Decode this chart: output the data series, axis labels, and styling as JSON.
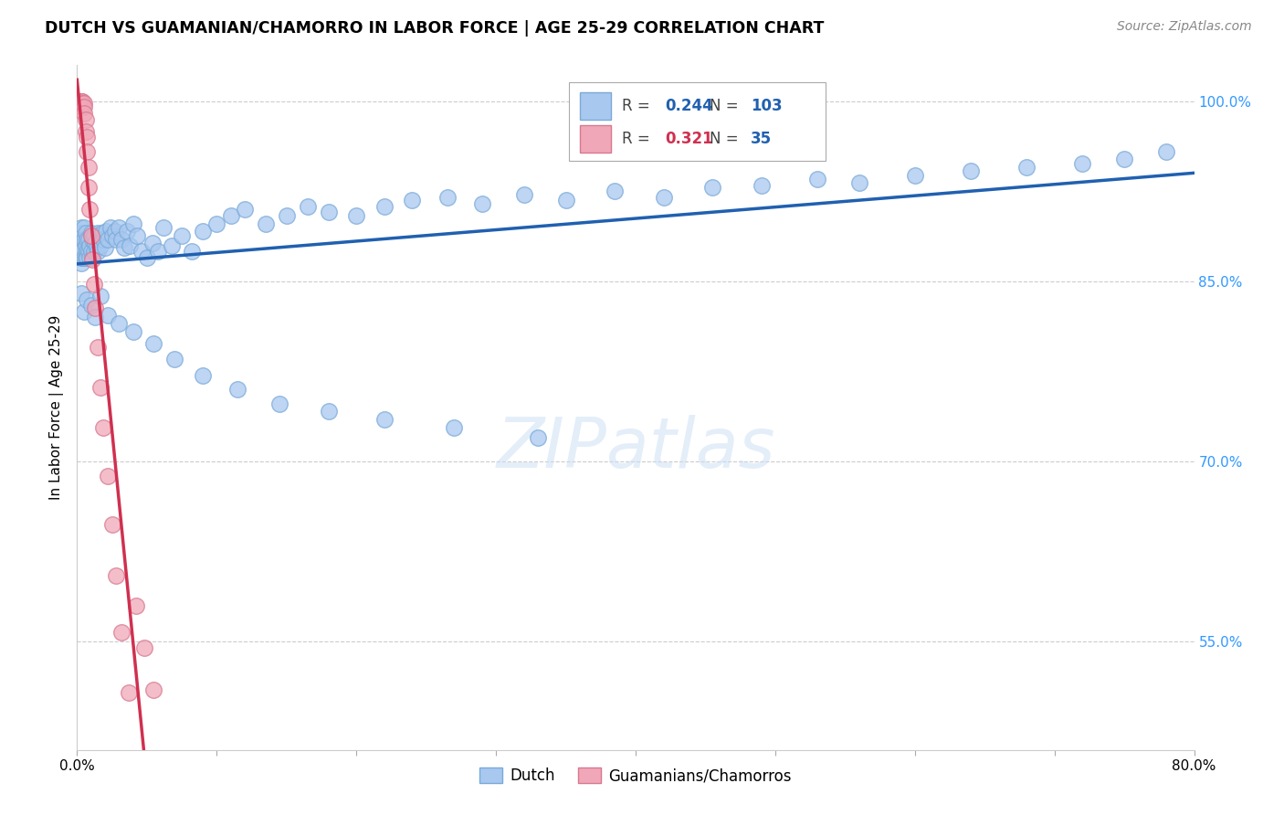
{
  "title": "DUTCH VS GUAMANIAN/CHAMORRO IN LABOR FORCE | AGE 25-29 CORRELATION CHART",
  "source": "Source: ZipAtlas.com",
  "ylabel": "In Labor Force | Age 25-29",
  "xlim": [
    0.0,
    0.8
  ],
  "ylim": [
    0.46,
    1.03
  ],
  "xticks": [
    0.0,
    0.1,
    0.2,
    0.3,
    0.4,
    0.5,
    0.6,
    0.7,
    0.8
  ],
  "yticks_right": [
    0.55,
    0.7,
    0.85,
    1.0
  ],
  "ytick_right_labels": [
    "55.0%",
    "70.0%",
    "85.0%",
    "100.0%"
  ],
  "blue_color": "#a8c8f0",
  "blue_edge_color": "#7aaad8",
  "blue_line_color": "#2060b0",
  "pink_color": "#f0a8b8",
  "pink_edge_color": "#d87890",
  "pink_line_color": "#d03050",
  "legend_blue_R": "0.244",
  "legend_blue_N": "103",
  "legend_pink_R": "0.321",
  "legend_pink_N": "35",
  "legend_label_dutch": "Dutch",
  "legend_label_guam": "Guamanians/Chamorros",
  "blue_R_color": "#2060b0",
  "blue_N_color": "#2060b0",
  "pink_R_color": "#d03050",
  "pink_N_color": "#2060b0",
  "watermark": "ZIPatlas",
  "dutch_x": [
    0.002,
    0.003,
    0.003,
    0.003,
    0.003,
    0.004,
    0.004,
    0.004,
    0.004,
    0.005,
    0.005,
    0.005,
    0.006,
    0.006,
    0.006,
    0.007,
    0.007,
    0.007,
    0.008,
    0.008,
    0.009,
    0.009,
    0.01,
    0.01,
    0.011,
    0.011,
    0.012,
    0.012,
    0.013,
    0.014,
    0.015,
    0.015,
    0.016,
    0.017,
    0.018,
    0.019,
    0.02,
    0.021,
    0.022,
    0.024,
    0.025,
    0.027,
    0.028,
    0.03,
    0.032,
    0.034,
    0.036,
    0.038,
    0.04,
    0.043,
    0.046,
    0.05,
    0.054,
    0.058,
    0.062,
    0.068,
    0.075,
    0.082,
    0.09,
    0.1,
    0.11,
    0.12,
    0.135,
    0.15,
    0.165,
    0.18,
    0.2,
    0.22,
    0.24,
    0.265,
    0.29,
    0.32,
    0.35,
    0.385,
    0.42,
    0.455,
    0.49,
    0.53,
    0.56,
    0.6,
    0.64,
    0.68,
    0.72,
    0.75,
    0.78,
    0.003,
    0.005,
    0.007,
    0.01,
    0.013,
    0.017,
    0.022,
    0.03,
    0.04,
    0.055,
    0.07,
    0.09,
    0.115,
    0.145,
    0.18,
    0.22,
    0.27,
    0.33
  ],
  "dutch_y": [
    0.88,
    0.895,
    0.875,
    0.865,
    0.87,
    0.89,
    0.88,
    0.87,
    0.875,
    0.895,
    0.885,
    0.87,
    0.89,
    0.88,
    0.87,
    0.885,
    0.875,
    0.87,
    0.885,
    0.875,
    0.88,
    0.87,
    0.89,
    0.875,
    0.885,
    0.87,
    0.888,
    0.875,
    0.882,
    0.878,
    0.89,
    0.875,
    0.885,
    0.88,
    0.89,
    0.885,
    0.878,
    0.892,
    0.885,
    0.895,
    0.888,
    0.892,
    0.885,
    0.895,
    0.885,
    0.878,
    0.892,
    0.88,
    0.898,
    0.888,
    0.875,
    0.87,
    0.882,
    0.875,
    0.895,
    0.88,
    0.888,
    0.875,
    0.892,
    0.898,
    0.905,
    0.91,
    0.898,
    0.905,
    0.912,
    0.908,
    0.905,
    0.912,
    0.918,
    0.92,
    0.915,
    0.922,
    0.918,
    0.925,
    0.92,
    0.928,
    0.93,
    0.935,
    0.932,
    0.938,
    0.942,
    0.945,
    0.948,
    0.952,
    0.958,
    0.84,
    0.825,
    0.835,
    0.83,
    0.82,
    0.838,
    0.822,
    0.815,
    0.808,
    0.798,
    0.785,
    0.772,
    0.76,
    0.748,
    0.742,
    0.735,
    0.728,
    0.72
  ],
  "guam_x": [
    0.002,
    0.002,
    0.002,
    0.003,
    0.003,
    0.003,
    0.003,
    0.004,
    0.004,
    0.004,
    0.005,
    0.005,
    0.005,
    0.006,
    0.006,
    0.007,
    0.007,
    0.008,
    0.008,
    0.009,
    0.01,
    0.011,
    0.012,
    0.013,
    0.015,
    0.017,
    0.019,
    0.022,
    0.025,
    0.028,
    0.032,
    0.037,
    0.042,
    0.048,
    0.055
  ],
  "guam_y": [
    1.0,
    1.0,
    0.998,
    1.0,
    1.0,
    0.998,
    0.995,
    1.0,
    0.998,
    0.995,
    0.998,
    0.995,
    0.99,
    0.985,
    0.975,
    0.97,
    0.958,
    0.945,
    0.928,
    0.91,
    0.888,
    0.868,
    0.848,
    0.828,
    0.795,
    0.762,
    0.728,
    0.688,
    0.648,
    0.605,
    0.558,
    0.508,
    0.58,
    0.545,
    0.51
  ]
}
